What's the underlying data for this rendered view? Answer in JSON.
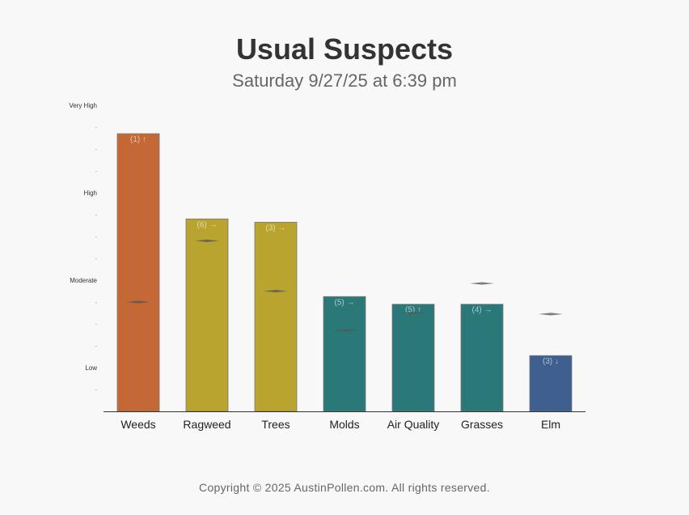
{
  "header": {
    "title": "Usual Suspects",
    "subtitle": "Saturday 9/27/25 at 6:39 pm"
  },
  "chart_data": {
    "type": "bar",
    "title": "Usual Suspects",
    "subtitle": "Saturday 9/27/25 at 6:39 pm",
    "y_axis": {
      "range": [
        0,
        14
      ],
      "labeled_ticks": [
        {
          "value": 2,
          "label": "Low"
        },
        {
          "value": 6,
          "label": "Moderate"
        },
        {
          "value": 10,
          "label": "High"
        },
        {
          "value": 14,
          "label": "Very High"
        }
      ],
      "minor_tick_label": "-",
      "grid": false
    },
    "categories": [
      "Weeds",
      "Ragweed",
      "Trees",
      "Molds",
      "Air Quality",
      "Grasses",
      "Elm"
    ],
    "bars": [
      {
        "category": "Weeds",
        "value": 12.7,
        "rank_label": "(1) ↑",
        "color": "#c46836",
        "marker": 5.0
      },
      {
        "category": "Ragweed",
        "value": 8.8,
        "rank_label": "(6) →",
        "color": "#b8a42f",
        "marker": 7.8
      },
      {
        "category": "Trees",
        "value": 8.65,
        "rank_label": "(3) →",
        "color": "#b8a42f",
        "marker": 5.5
      },
      {
        "category": "Molds",
        "value": 5.25,
        "rank_label": "(5) →",
        "color": "#2a7878",
        "marker": 3.7
      },
      {
        "category": "Air Quality",
        "value": 4.9,
        "rank_label": "(5) ↑",
        "color": "#2a7878",
        "marker": 4.5
      },
      {
        "category": "Grasses",
        "value": 4.9,
        "rank_label": "(4) →",
        "color": "#2a7878",
        "marker": 5.85
      },
      {
        "category": "Elm",
        "value": 2.55,
        "rank_label": "(3) ↓",
        "color": "#3e5f90",
        "marker": 4.45
      }
    ]
  },
  "footer": {
    "copyright": "Copyright © 2025 AustinPollen.com.  All rights reserved."
  }
}
